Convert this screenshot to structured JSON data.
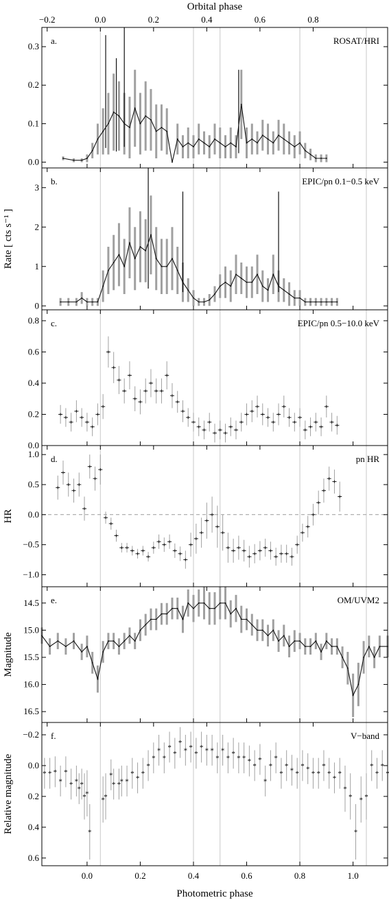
{
  "figure": {
    "top_axis_title": "Orbital phase",
    "bottom_axis_title": "Photometric phase",
    "top_ticks": [
      "−0.2",
      "0.0",
      "0.2",
      "0.4",
      "0.6",
      "0.8"
    ],
    "bottom_ticks": [
      "0.0",
      "0.2",
      "0.4",
      "0.6",
      "0.8",
      "1.0"
    ]
  },
  "chart_data": [
    {
      "type": "line",
      "panel": "a.",
      "label": "ROSAT/HRI",
      "ylabel": "",
      "xlim": [
        -0.17,
        1.13
      ],
      "ylim": [
        -0.015,
        0.35
      ],
      "yticks": [
        "0.0",
        "0.1",
        "0.2",
        "0.3"
      ],
      "ytick_values": [
        0.0,
        0.1,
        0.2,
        0.3
      ],
      "x": [
        -0.09,
        -0.05,
        -0.02,
        0.0,
        0.02,
        0.04,
        0.06,
        0.08,
        0.1,
        0.12,
        0.14,
        0.16,
        0.18,
        0.2,
        0.22,
        0.24,
        0.26,
        0.28,
        0.3,
        0.32,
        0.34,
        0.36,
        0.38,
        0.4,
        0.42,
        0.44,
        0.46,
        0.48,
        0.5,
        0.52,
        0.54,
        0.56,
        0.58,
        0.6,
        0.62,
        0.64,
        0.66,
        0.68,
        0.7,
        0.72,
        0.74,
        0.76,
        0.78,
        0.8,
        0.82,
        0.84,
        0.86,
        0.88,
        0.9
      ],
      "values": [
        0.01,
        0.005,
        0.005,
        0.01,
        0.03,
        0.06,
        0.08,
        0.1,
        0.13,
        0.12,
        0.1,
        0.09,
        0.14,
        0.1,
        0.12,
        0.11,
        0.08,
        0.09,
        0.08,
        0.0,
        0.06,
        0.04,
        0.05,
        0.04,
        0.06,
        0.05,
        0.04,
        0.06,
        0.05,
        0.04,
        0.05,
        0.04,
        0.15,
        0.05,
        0.06,
        0.05,
        0.07,
        0.06,
        0.05,
        0.07,
        0.06,
        0.05,
        0.04,
        0.05,
        0.03,
        0.02,
        0.01,
        0.01,
        0.01
      ],
      "errors": [
        0.005,
        0.005,
        0.005,
        0.01,
        0.02,
        0.04,
        0.06,
        0.08,
        0.1,
        0.09,
        0.08,
        0.08,
        0.1,
        0.08,
        0.09,
        0.08,
        0.07,
        0.06,
        0.06,
        0.0,
        0.04,
        0.03,
        0.04,
        0.03,
        0.04,
        0.03,
        0.03,
        0.04,
        0.04,
        0.03,
        0.04,
        0.03,
        0.09,
        0.04,
        0.04,
        0.03,
        0.04,
        0.04,
        0.03,
        0.04,
        0.04,
        0.03,
        0.03,
        0.03,
        0.02,
        0.015,
        0.01,
        0.01,
        0.01
      ],
      "spikes": [
        {
          "x": 0.07,
          "y": 0.33
        },
        {
          "x": 0.11,
          "y": 0.27
        },
        {
          "x": 0.14,
          "y": 0.35
        },
        {
          "x": 0.57,
          "y": 0.24
        }
      ]
    },
    {
      "type": "line",
      "panel": "b.",
      "label": "EPIC/pn 0.1−0.5 keV",
      "ylabel": "Rate  [ cts s⁻¹ ]",
      "xlim": [
        -0.17,
        1.13
      ],
      "ylim": [
        -0.1,
        3.5
      ],
      "yticks": [
        "0",
        "1",
        "2",
        "3"
      ],
      "ytick_values": [
        0,
        1,
        2,
        3
      ],
      "x": [
        -0.1,
        -0.07,
        -0.04,
        -0.02,
        0.0,
        0.02,
        0.04,
        0.06,
        0.08,
        0.1,
        0.12,
        0.14,
        0.16,
        0.18,
        0.2,
        0.22,
        0.24,
        0.26,
        0.28,
        0.3,
        0.32,
        0.34,
        0.36,
        0.38,
        0.4,
        0.42,
        0.44,
        0.46,
        0.48,
        0.5,
        0.52,
        0.54,
        0.56,
        0.58,
        0.6,
        0.62,
        0.64,
        0.66,
        0.68,
        0.7,
        0.72,
        0.74,
        0.76,
        0.78,
        0.8,
        0.82,
        0.84,
        0.86,
        0.88,
        0.9,
        0.92,
        0.94
      ],
      "values": [
        0.1,
        0.1,
        0.1,
        0.2,
        0.1,
        0.1,
        0.1,
        0.5,
        0.9,
        1.1,
        1.3,
        1.0,
        1.6,
        1.2,
        1.5,
        1.4,
        1.8,
        1.2,
        1.0,
        1.0,
        1.2,
        0.9,
        0.6,
        0.4,
        0.2,
        0.1,
        0.1,
        0.15,
        0.3,
        0.5,
        0.6,
        0.5,
        0.8,
        0.7,
        0.6,
        0.6,
        0.8,
        0.5,
        0.4,
        0.8,
        0.5,
        0.4,
        0.3,
        0.2,
        0.2,
        0.1,
        0.1,
        0.1,
        0.1,
        0.1,
        0.1,
        0.1
      ],
      "errors": [
        0.1,
        0.1,
        0.1,
        0.15,
        0.1,
        0.1,
        0.1,
        0.4,
        0.6,
        0.7,
        0.8,
        0.7,
        0.9,
        0.8,
        0.9,
        0.8,
        1.0,
        0.8,
        0.7,
        0.7,
        0.8,
        0.6,
        0.5,
        0.3,
        0.2,
        0.1,
        0.1,
        0.15,
        0.2,
        0.3,
        0.4,
        0.4,
        0.5,
        0.4,
        0.4,
        0.4,
        0.5,
        0.4,
        0.3,
        0.5,
        0.4,
        0.3,
        0.3,
        0.2,
        0.2,
        0.1,
        0.1,
        0.1,
        0.1,
        0.1,
        0.1,
        0.1
      ],
      "spikes": [
        {
          "x": 0.23,
          "y": 3.5
        },
        {
          "x": 0.36,
          "y": 2.9
        },
        {
          "x": 0.72,
          "y": 2.9
        }
      ]
    },
    {
      "type": "scatter",
      "panel": "c.",
      "label": "EPIC/pn 0.5−10.0 keV",
      "ylabel": "",
      "xlim": [
        -0.17,
        1.13
      ],
      "ylim": [
        0.0,
        0.87
      ],
      "yticks": [
        "0.0",
        "0.2",
        "0.4",
        "0.6",
        "0.8"
      ],
      "ytick_values": [
        0.0,
        0.2,
        0.4,
        0.6,
        0.8
      ],
      "x": [
        -0.1,
        -0.08,
        -0.06,
        -0.04,
        -0.02,
        0.0,
        0.02,
        0.04,
        0.06,
        0.08,
        0.1,
        0.12,
        0.14,
        0.16,
        0.18,
        0.2,
        0.22,
        0.24,
        0.26,
        0.28,
        0.3,
        0.32,
        0.34,
        0.36,
        0.38,
        0.4,
        0.42,
        0.44,
        0.46,
        0.48,
        0.5,
        0.52,
        0.54,
        0.56,
        0.58,
        0.6,
        0.62,
        0.64,
        0.66,
        0.68,
        0.7,
        0.72,
        0.74,
        0.76,
        0.78,
        0.8,
        0.82,
        0.84,
        0.86,
        0.88,
        0.9,
        0.92,
        0.94
      ],
      "values": [
        0.2,
        0.18,
        0.15,
        0.22,
        0.18,
        0.15,
        0.12,
        0.2,
        0.25,
        0.6,
        0.5,
        0.42,
        0.35,
        0.45,
        0.3,
        0.28,
        0.35,
        0.4,
        0.35,
        0.35,
        0.45,
        0.32,
        0.28,
        0.22,
        0.18,
        0.15,
        0.12,
        0.1,
        0.15,
        0.08,
        0.1,
        0.08,
        0.12,
        0.1,
        0.15,
        0.2,
        0.22,
        0.25,
        0.2,
        0.18,
        0.15,
        0.2,
        0.25,
        0.18,
        0.15,
        0.18,
        0.1,
        0.12,
        0.15,
        0.12,
        0.25,
        0.15,
        0.13
      ],
      "errors": [
        0.06,
        0.06,
        0.06,
        0.07,
        0.06,
        0.06,
        0.06,
        0.07,
        0.08,
        0.1,
        0.1,
        0.09,
        0.08,
        0.09,
        0.08,
        0.08,
        0.08,
        0.09,
        0.08,
        0.08,
        0.09,
        0.08,
        0.07,
        0.07,
        0.06,
        0.06,
        0.06,
        0.06,
        0.06,
        0.06,
        0.06,
        0.06,
        0.06,
        0.06,
        0.06,
        0.07,
        0.07,
        0.07,
        0.07,
        0.06,
        0.06,
        0.07,
        0.07,
        0.06,
        0.06,
        0.06,
        0.06,
        0.06,
        0.06,
        0.06,
        0.07,
        0.06,
        0.06
      ]
    },
    {
      "type": "scatter",
      "panel": "d.",
      "label": "pn HR",
      "ylabel": "HR",
      "xlim": [
        -0.17,
        1.13
      ],
      "ylim": [
        -1.2,
        1.15
      ],
      "yticks": [
        "1.0",
        "0.5",
        "0.0",
        "−0.5",
        "−1.0"
      ],
      "ytick_values": [
        1.0,
        0.5,
        0.0,
        -0.5,
        -1.0
      ],
      "zero_line": 0.0,
      "x": [
        -0.11,
        -0.09,
        -0.07,
        -0.05,
        -0.03,
        -0.01,
        0.01,
        0.03,
        0.05,
        0.07,
        0.09,
        0.11,
        0.13,
        0.15,
        0.17,
        0.19,
        0.21,
        0.23,
        0.25,
        0.27,
        0.29,
        0.31,
        0.33,
        0.35,
        0.37,
        0.39,
        0.41,
        0.43,
        0.45,
        0.47,
        0.49,
        0.51,
        0.53,
        0.55,
        0.57,
        0.59,
        0.61,
        0.63,
        0.65,
        0.67,
        0.69,
        0.71,
        0.73,
        0.75,
        0.77,
        0.79,
        0.81,
        0.83,
        0.85,
        0.87,
        0.89,
        0.91,
        0.93,
        0.95
      ],
      "values": [
        0.45,
        0.7,
        0.5,
        0.4,
        0.5,
        0.1,
        0.8,
        0.6,
        0.75,
        -0.05,
        -0.15,
        -0.35,
        -0.55,
        -0.55,
        -0.6,
        -0.65,
        -0.6,
        -0.7,
        -0.55,
        -0.45,
        -0.5,
        -0.45,
        -0.6,
        -0.65,
        -0.75,
        -0.5,
        -0.4,
        -0.3,
        -0.1,
        0.0,
        -0.2,
        -0.3,
        -0.55,
        -0.6,
        -0.55,
        -0.6,
        -0.7,
        -0.65,
        -0.6,
        -0.55,
        -0.6,
        -0.7,
        -0.65,
        -0.65,
        -0.7,
        -0.5,
        -0.3,
        -0.2,
        0.0,
        0.2,
        0.4,
        0.6,
        0.55,
        0.3
      ],
      "errors": [
        0.2,
        0.2,
        0.2,
        0.2,
        0.2,
        0.2,
        0.2,
        0.2,
        0.25,
        0.1,
        0.1,
        0.1,
        0.08,
        0.08,
        0.08,
        0.08,
        0.08,
        0.08,
        0.1,
        0.12,
        0.12,
        0.12,
        0.12,
        0.12,
        0.15,
        0.2,
        0.25,
        0.25,
        0.3,
        0.3,
        0.35,
        0.3,
        0.25,
        0.2,
        0.2,
        0.18,
        0.18,
        0.16,
        0.16,
        0.15,
        0.15,
        0.15,
        0.15,
        0.15,
        0.15,
        0.15,
        0.15,
        0.18,
        0.18,
        0.2,
        0.2,
        0.2,
        0.2,
        0.25
      ]
    },
    {
      "type": "line",
      "panel": "e.",
      "label": "OM/UVM2",
      "ylabel": "Magnitude",
      "xlim": [
        -0.17,
        1.13
      ],
      "ylim": [
        16.7,
        14.2
      ],
      "inverted": true,
      "yticks": [
        "14.5",
        "15.0",
        "15.5",
        "16.0",
        "16.5"
      ],
      "ytick_values": [
        14.5,
        15.0,
        15.5,
        16.0,
        16.5
      ],
      "x": [
        -0.17,
        -0.14,
        -0.11,
        -0.08,
        -0.05,
        -0.02,
        0.0,
        0.02,
        0.04,
        0.06,
        0.08,
        0.1,
        0.12,
        0.14,
        0.16,
        0.18,
        0.2,
        0.22,
        0.24,
        0.26,
        0.28,
        0.3,
        0.32,
        0.34,
        0.36,
        0.38,
        0.4,
        0.42,
        0.44,
        0.46,
        0.48,
        0.5,
        0.52,
        0.54,
        0.56,
        0.58,
        0.6,
        0.62,
        0.64,
        0.66,
        0.68,
        0.7,
        0.72,
        0.74,
        0.76,
        0.78,
        0.8,
        0.82,
        0.84,
        0.86,
        0.88,
        0.9,
        0.92,
        0.94,
        0.96,
        0.98,
        1.0,
        1.02,
        1.04,
        1.06,
        1.08,
        1.1,
        1.13
      ],
      "values": [
        15.1,
        15.3,
        15.2,
        15.3,
        15.2,
        15.4,
        15.3,
        15.6,
        15.9,
        15.4,
        15.2,
        15.2,
        15.3,
        15.2,
        15.1,
        15.2,
        15.0,
        14.9,
        14.8,
        14.8,
        14.7,
        14.7,
        14.6,
        14.6,
        14.8,
        14.5,
        14.6,
        14.5,
        14.5,
        14.6,
        14.6,
        14.5,
        14.5,
        14.7,
        14.6,
        14.8,
        14.8,
        14.9,
        15.0,
        15.0,
        15.1,
        15.0,
        15.2,
        15.1,
        15.3,
        15.2,
        15.2,
        15.3,
        15.3,
        15.2,
        15.4,
        15.2,
        15.3,
        15.3,
        15.5,
        15.7,
        16.2,
        16.0,
        15.5,
        15.3,
        15.5,
        15.3,
        15.3
      ],
      "errors": [
        0.15,
        0.15,
        0.15,
        0.15,
        0.15,
        0.15,
        0.2,
        0.2,
        0.25,
        0.2,
        0.15,
        0.15,
        0.15,
        0.15,
        0.15,
        0.15,
        0.2,
        0.2,
        0.2,
        0.2,
        0.2,
        0.2,
        0.2,
        0.2,
        0.25,
        0.25,
        0.25,
        0.25,
        0.3,
        0.3,
        0.3,
        0.3,
        0.3,
        0.25,
        0.25,
        0.25,
        0.2,
        0.2,
        0.2,
        0.2,
        0.2,
        0.2,
        0.2,
        0.2,
        0.2,
        0.2,
        0.15,
        0.15,
        0.15,
        0.15,
        0.15,
        0.15,
        0.15,
        0.15,
        0.2,
        0.3,
        0.4,
        0.4,
        0.3,
        0.2,
        0.2,
        0.2,
        0.2
      ]
    },
    {
      "type": "scatter",
      "panel": "f.",
      "label": "V−band",
      "ylabel": "Relative magnitude",
      "xlim": [
        -0.17,
        1.13
      ],
      "ylim": [
        0.65,
        -0.28
      ],
      "inverted": true,
      "yticks": [
        "−0.2",
        "0.0",
        "0.2",
        "0.4",
        "0.6"
      ],
      "ytick_values": [
        -0.2,
        0.0,
        0.2,
        0.4,
        0.6
      ],
      "x": [
        -0.16,
        -0.14,
        -0.12,
        -0.1,
        -0.08,
        -0.06,
        -0.04,
        -0.03,
        -0.02,
        -0.01,
        0.0,
        0.01,
        0.06,
        0.07,
        0.09,
        0.1,
        0.12,
        0.13,
        0.15,
        0.17,
        0.19,
        0.21,
        0.23,
        0.25,
        0.27,
        0.29,
        0.31,
        0.33,
        0.35,
        0.37,
        0.39,
        0.41,
        0.43,
        0.45,
        0.47,
        0.49,
        0.51,
        0.53,
        0.55,
        0.57,
        0.59,
        0.61,
        0.63,
        0.65,
        0.67,
        0.69,
        0.71,
        0.73,
        0.75,
        0.77,
        0.79,
        0.81,
        0.83,
        0.85,
        0.87,
        0.89,
        0.91,
        0.93,
        0.95,
        0.97,
        0.99,
        1.01,
        1.03,
        1.05,
        1.07,
        1.09,
        1.11,
        1.13
      ],
      "values": [
        0.05,
        0.05,
        0.04,
        0.1,
        0.04,
        0.12,
        0.1,
        0.15,
        0.12,
        0.2,
        0.18,
        0.43,
        0.22,
        0.2,
        0.06,
        0.12,
        0.12,
        0.1,
        0.1,
        0.05,
        0.08,
        0.05,
        0.0,
        -0.05,
        -0.1,
        -0.05,
        -0.12,
        -0.08,
        -0.15,
        -0.1,
        -0.12,
        -0.08,
        -0.12,
        -0.1,
        -0.1,
        -0.05,
        -0.1,
        -0.05,
        -0.08,
        -0.05,
        -0.05,
        -0.03,
        0.0,
        -0.04,
        0.1,
        0.0,
        -0.05,
        0.05,
        0.0,
        0.03,
        0.05,
        0.0,
        0.02,
        0.05,
        0.05,
        0.0,
        0.05,
        0.08,
        0.05,
        0.15,
        0.2,
        0.43,
        0.22,
        0.2,
        0.0,
        0.05,
        0.0,
        0.05
      ],
      "errors": [
        0.1,
        0.1,
        0.1,
        0.1,
        0.1,
        0.1,
        0.1,
        0.1,
        0.1,
        0.15,
        0.15,
        0.18,
        0.15,
        0.15,
        0.1,
        0.1,
        0.1,
        0.1,
        0.1,
        0.1,
        0.1,
        0.1,
        0.1,
        0.1,
        0.1,
        0.1,
        0.1,
        0.1,
        0.1,
        0.1,
        0.1,
        0.1,
        0.1,
        0.1,
        0.1,
        0.1,
        0.1,
        0.1,
        0.1,
        0.1,
        0.1,
        0.1,
        0.1,
        0.1,
        0.1,
        0.1,
        0.1,
        0.1,
        0.1,
        0.1,
        0.1,
        0.1,
        0.1,
        0.1,
        0.1,
        0.1,
        0.1,
        0.1,
        0.1,
        0.15,
        0.15,
        0.18,
        0.15,
        0.15,
        0.1,
        0.1,
        0.1,
        0.1
      ]
    }
  ],
  "vertical_lines": [
    0.05,
    0.4,
    0.5,
    0.8,
    1.05
  ],
  "top_tick_values": [
    -0.2,
    0.0,
    0.2,
    0.4,
    0.6,
    0.8
  ],
  "bottom_tick_values": [
    0.0,
    0.2,
    0.4,
    0.6,
    0.8,
    1.0
  ],
  "colors": {
    "data": "#111111",
    "error": "#a0a0a0",
    "guide": "#c8c8c8",
    "axis": "#000000"
  }
}
